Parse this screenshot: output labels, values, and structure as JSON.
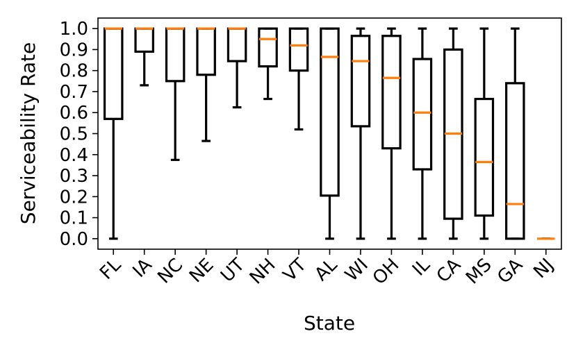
{
  "chart_data": {
    "type": "box",
    "title": "",
    "xlabel": "State",
    "ylabel": "Serviceability Rate",
    "ylim": [
      -0.05,
      1.05
    ],
    "yticks": [
      0.0,
      0.1,
      0.2,
      0.3,
      0.4,
      0.5,
      0.6,
      0.7,
      0.8,
      0.9,
      1.0
    ],
    "ytick_labels": [
      "0.0",
      "0.1",
      "0.2",
      "0.3",
      "0.4",
      "0.5",
      "0.6",
      "0.7",
      "0.8",
      "0.9",
      "1.0"
    ],
    "categories": [
      "FL",
      "IA",
      "NC",
      "NE",
      "UT",
      "NH",
      "VT",
      "AL",
      "WI",
      "OH",
      "IL",
      "CA",
      "MS",
      "GA",
      "NJ"
    ],
    "boxes": [
      {
        "whisker_low": 0.0,
        "q1": 0.57,
        "median": 1.0,
        "q3": 1.0,
        "whisker_high": 1.0
      },
      {
        "whisker_low": 0.73,
        "q1": 0.89,
        "median": 1.0,
        "q3": 1.0,
        "whisker_high": 1.0
      },
      {
        "whisker_low": 0.375,
        "q1": 0.75,
        "median": 1.0,
        "q3": 1.0,
        "whisker_high": 1.0
      },
      {
        "whisker_low": 0.465,
        "q1": 0.78,
        "median": 1.0,
        "q3": 1.0,
        "whisker_high": 1.0
      },
      {
        "whisker_low": 0.625,
        "q1": 0.845,
        "median": 1.0,
        "q3": 1.0,
        "whisker_high": 1.0
      },
      {
        "whisker_low": 0.665,
        "q1": 0.82,
        "median": 0.95,
        "q3": 1.0,
        "whisker_high": 1.0
      },
      {
        "whisker_low": 0.52,
        "q1": 0.8,
        "median": 0.92,
        "q3": 1.0,
        "whisker_high": 1.0
      },
      {
        "whisker_low": 0.0,
        "q1": 0.205,
        "median": 0.865,
        "q3": 1.0,
        "whisker_high": 1.0
      },
      {
        "whisker_low": 0.0,
        "q1": 0.535,
        "median": 0.845,
        "q3": 0.965,
        "whisker_high": 1.0
      },
      {
        "whisker_low": 0.0,
        "q1": 0.43,
        "median": 0.765,
        "q3": 0.965,
        "whisker_high": 1.0
      },
      {
        "whisker_low": 0.0,
        "q1": 0.33,
        "median": 0.6,
        "q3": 0.855,
        "whisker_high": 1.0
      },
      {
        "whisker_low": 0.0,
        "q1": 0.095,
        "median": 0.5,
        "q3": 0.9,
        "whisker_high": 1.0
      },
      {
        "whisker_low": 0.0,
        "q1": 0.11,
        "median": 0.365,
        "q3": 0.665,
        "whisker_high": 1.0
      },
      {
        "whisker_low": 0.0,
        "q1": 0.0,
        "median": 0.165,
        "q3": 0.74,
        "whisker_high": 1.0
      },
      {
        "whisker_low": 0.0,
        "q1": 0.0,
        "median": 0.0,
        "q3": 0.0,
        "whisker_high": 0.0
      }
    ],
    "box_color": "#000000",
    "median_color": "#ff7f0e",
    "grid": false,
    "legend": "none"
  }
}
